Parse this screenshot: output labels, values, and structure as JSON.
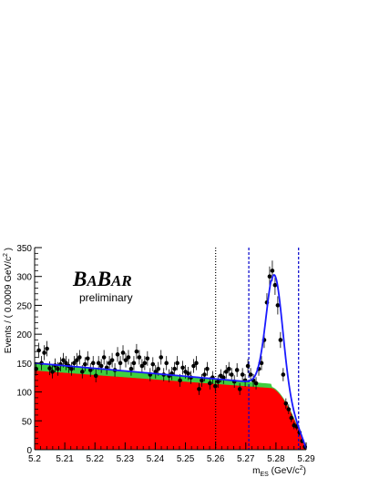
{
  "chart_data": {
    "type": "scatter",
    "title": "",
    "xlabel": "m_ES (GeV/c^2)",
    "ylabel": "Events / ( 0.0009 GeV/c^2 )",
    "xlim": [
      5.2,
      5.29
    ],
    "ylim": [
      0,
      350
    ],
    "x_ticks": [
      "5.2",
      "5.21",
      "5.22",
      "5.23",
      "5.24",
      "5.25",
      "5.26",
      "5.27",
      "5.28",
      "5.29"
    ],
    "y_ticks": [
      "0",
      "50",
      "100",
      "150",
      "200",
      "250",
      "300",
      "350"
    ],
    "logo": "BaBar",
    "logo_subtitle": "preliminary",
    "colors": {
      "red_component": "#ff0000",
      "green_component": "#3fcf3f",
      "fit_curve": "#1a1aff",
      "points": "#000000",
      "dashed_lines": "#0000cc",
      "dotted_line": "#000000"
    },
    "vertical_lines": [
      {
        "x": 5.26,
        "style": "dotted",
        "color": "#000000"
      },
      {
        "x": 5.271,
        "style": "dashed",
        "color": "#0000cc"
      },
      {
        "x": 5.2875,
        "style": "dashed",
        "color": "#0000cc"
      }
    ],
    "series": [
      {
        "name": "",
        "kind": "data_points",
        "x": [
          5.2005,
          5.2014,
          5.2023,
          5.2032,
          5.2041,
          5.205,
          5.2059,
          5.2068,
          5.2077,
          5.2086,
          5.2095,
          5.2104,
          5.2113,
          5.2122,
          5.2131,
          5.214,
          5.2149,
          5.2158,
          5.2167,
          5.2176,
          5.2185,
          5.2194,
          5.2203,
          5.2212,
          5.2221,
          5.223,
          5.2239,
          5.2248,
          5.2257,
          5.2266,
          5.2275,
          5.2284,
          5.2293,
          5.2302,
          5.2311,
          5.232,
          5.2329,
          5.2338,
          5.2347,
          5.2356,
          5.2365,
          5.2374,
          5.2383,
          5.2392,
          5.2401,
          5.241,
          5.2419,
          5.2428,
          5.2437,
          5.2446,
          5.2455,
          5.2464,
          5.2473,
          5.2482,
          5.2491,
          5.25,
          5.2509,
          5.2518,
          5.2527,
          5.2536,
          5.2545,
          5.2554,
          5.2563,
          5.2572,
          5.2581,
          5.259,
          5.2599,
          5.2608,
          5.2617,
          5.2626,
          5.2635,
          5.2644,
          5.2653,
          5.2662,
          5.2671,
          5.268,
          5.2689,
          5.2698,
          5.2707,
          5.2716,
          5.2725,
          5.2734,
          5.2743,
          5.2752,
          5.2761,
          5.277,
          5.2779,
          5.2788,
          5.2797,
          5.2806,
          5.2815,
          5.2824,
          5.2833,
          5.2842,
          5.2851,
          5.286,
          5.2869,
          5.2878,
          5.2887,
          5.2896
        ],
        "y": [
          140,
          172,
          150,
          168,
          175,
          141,
          135,
          146,
          140,
          148,
          155,
          150,
          145,
          140,
          150,
          155,
          160,
          135,
          148,
          158,
          138,
          150,
          128,
          150,
          145,
          160,
          142,
          150,
          155,
          138,
          165,
          150,
          168,
          155,
          160,
          140,
          150,
          170,
          160,
          145,
          150,
          158,
          130,
          148,
          135,
          140,
          160,
          130,
          150,
          128,
          132,
          140,
          150,
          120,
          142,
          135,
          132,
          125,
          145,
          150,
          105,
          120,
          130,
          140,
          115,
          125,
          110,
          118,
          128,
          125,
          135,
          140,
          130,
          118,
          138,
          105,
          130,
          120,
          145,
          130,
          120,
          115,
          140,
          150,
          190,
          255,
          300,
          310,
          285,
          250,
          190,
          130,
          80,
          70,
          55,
          42,
          40,
          30,
          15,
          5
        ],
        "y_err": 12
      },
      {
        "name": "",
        "kind": "total_fit",
        "bg_at_5_20": 150,
        "bg_at_5_27": 120,
        "peak_mean": 5.2795,
        "peak_height": 196,
        "peak_sigma": 0.0027
      },
      {
        "name": "",
        "kind": "green_component",
        "level_at_5_20": 150,
        "level_at_5_27": 118
      },
      {
        "name": "",
        "kind": "red_component",
        "level_at_5_20": 137,
        "level_at_5_27": 110
      }
    ]
  }
}
